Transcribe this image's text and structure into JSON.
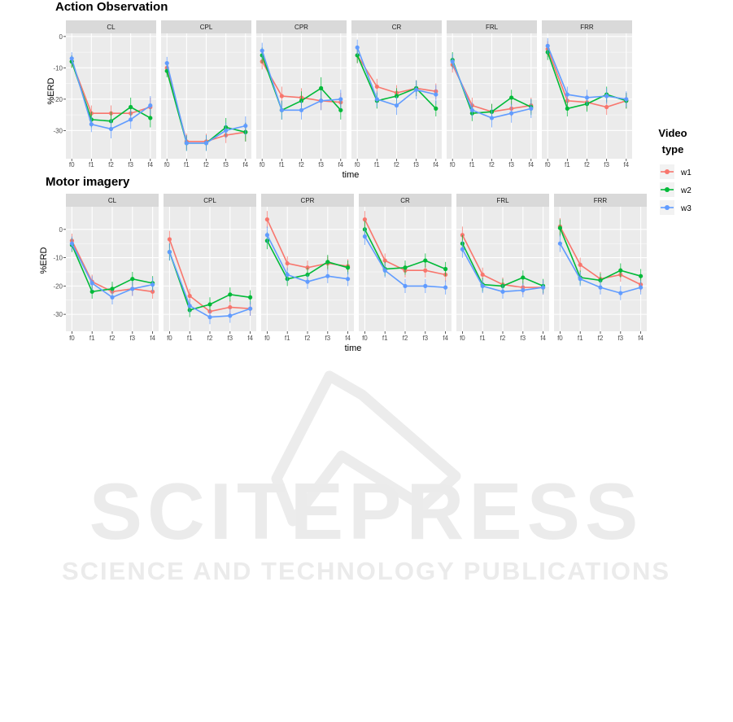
{
  "chart_data": [
    {
      "type": "line",
      "title": "Action Observation",
      "ylabel": "%ERD",
      "xlabel": "time",
      "ylim": [
        -39,
        1
      ],
      "yticks": [
        0,
        -10,
        -20,
        -30
      ],
      "x": [
        "f0",
        "f1",
        "f2",
        "f3",
        "f4"
      ],
      "facets": [
        {
          "name": "CL",
          "series": [
            {
              "name": "w1",
              "values": [
                -8,
                -24.5,
                -24.5,
                -24.5,
                -22.5
              ],
              "err": [
                2,
                2.5,
                2.5,
                2.5,
                3
              ]
            },
            {
              "name": "w2",
              "values": [
                -8,
                -26.5,
                -27,
                -22.5,
                -26
              ],
              "err": [
                2,
                2.5,
                3,
                3,
                3
              ]
            },
            {
              "name": "w3",
              "values": [
                -7,
                -28,
                -29.5,
                -26.5,
                -22
              ],
              "err": [
                2,
                2.5,
                3,
                3,
                3
              ]
            }
          ]
        },
        {
          "name": "CPL",
          "series": [
            {
              "name": "w1",
              "values": [
                -10,
                -33.5,
                -33.5,
                -31.5,
                -30.5
              ],
              "err": [
                2,
                2.5,
                2.5,
                2.5,
                3
              ]
            },
            {
              "name": "w2",
              "values": [
                -11,
                -34,
                -34,
                -29,
                -30.5
              ],
              "err": [
                2,
                2.5,
                2.5,
                3,
                3
              ]
            },
            {
              "name": "w3",
              "values": [
                -8.5,
                -34,
                -34,
                -30,
                -28.5
              ],
              "err": [
                2,
                2.5,
                2.5,
                2.5,
                3
              ]
            }
          ]
        },
        {
          "name": "CPR",
          "series": [
            {
              "name": "w1",
              "values": [
                -8,
                -19,
                -19.5,
                -20.5,
                -21
              ],
              "err": [
                2.5,
                3,
                3,
                3,
                3
              ]
            },
            {
              "name": "w2",
              "values": [
                -6,
                -23.5,
                -20.5,
                -16.5,
                -23.5
              ],
              "err": [
                2.5,
                3,
                3,
                3.5,
                3
              ]
            },
            {
              "name": "w3",
              "values": [
                -4.5,
                -23.5,
                -23.5,
                -20.5,
                -20
              ],
              "err": [
                2.5,
                3,
                3,
                3,
                3
              ]
            }
          ]
        },
        {
          "name": "CR",
          "series": [
            {
              "name": "w1",
              "values": [
                -6,
                -16,
                -18,
                -16.5,
                -17.5
              ],
              "err": [
                2.5,
                2.5,
                2.5,
                2.5,
                2.5
              ]
            },
            {
              "name": "w2",
              "values": [
                -6,
                -20.5,
                -19,
                -16.5,
                -23
              ],
              "err": [
                2.5,
                2.5,
                2.5,
                2.5,
                2.5
              ]
            },
            {
              "name": "w3",
              "values": [
                -3.5,
                -20,
                -22,
                -17,
                -18.5
              ],
              "err": [
                2.5,
                2.5,
                3,
                3,
                3
              ]
            }
          ]
        },
        {
          "name": "FRL",
          "series": [
            {
              "name": "w1",
              "values": [
                -9,
                -22,
                -24,
                -23,
                -22
              ],
              "err": [
                2.5,
                2.5,
                2.5,
                2.5,
                2.5
              ]
            },
            {
              "name": "w2",
              "values": [
                -7.5,
                -24.5,
                -24,
                -19.5,
                -22.5
              ],
              "err": [
                2.5,
                2.5,
                2.5,
                2.5,
                2.5
              ]
            },
            {
              "name": "w3",
              "values": [
                -8,
                -23.5,
                -26,
                -24.5,
                -23
              ],
              "err": [
                2.5,
                2.5,
                3,
                3,
                3
              ]
            }
          ]
        },
        {
          "name": "FRR",
          "series": [
            {
              "name": "w1",
              "values": [
                -4,
                -20.5,
                -21,
                -22.5,
                -20.5
              ],
              "err": [
                2.5,
                2.5,
                2.5,
                2.5,
                2.5
              ]
            },
            {
              "name": "w2",
              "values": [
                -5,
                -23,
                -21.5,
                -18.5,
                -20.5
              ],
              "err": [
                2.5,
                2.5,
                2.5,
                2.5,
                2.5
              ]
            },
            {
              "name": "w3",
              "values": [
                -3,
                -18.5,
                -19.5,
                -19,
                -20
              ],
              "err": [
                2.5,
                2.5,
                2.5,
                2.5,
                2.5
              ]
            }
          ]
        }
      ]
    },
    {
      "type": "line",
      "title": "Motor imagery",
      "ylabel": "%ERD",
      "xlabel": "time",
      "ylim": [
        -36,
        8
      ],
      "yticks": [
        0,
        -10,
        -20,
        -30
      ],
      "x": [
        "f0",
        "f1",
        "f2",
        "f3",
        "f4"
      ],
      "facets": [
        {
          "name": "CL",
          "series": [
            {
              "name": "w1",
              "values": [
                -4,
                -18.5,
                -22,
                -21,
                -22
              ],
              "err": [
                2.5,
                2.5,
                2.5,
                2.5,
                2.5
              ]
            },
            {
              "name": "w2",
              "values": [
                -5.5,
                -22,
                -21,
                -17.5,
                -19
              ],
              "err": [
                2.5,
                2.5,
                2.5,
                2.5,
                2.5
              ]
            },
            {
              "name": "w3",
              "values": [
                -5,
                -19,
                -24,
                -21,
                -19.5
              ],
              "err": [
                2.5,
                2.5,
                2.5,
                2.5,
                2.5
              ]
            }
          ]
        },
        {
          "name": "CPL",
          "series": [
            {
              "name": "w1",
              "values": [
                -3.5,
                -23.5,
                -29,
                -27.5,
                -28
              ],
              "err": [
                3,
                2.5,
                2.5,
                2.5,
                2.5
              ]
            },
            {
              "name": "w2",
              "values": [
                -8,
                -28.5,
                -26.5,
                -23,
                -24
              ],
              "err": [
                3,
                2.5,
                2.5,
                2.5,
                2.5
              ]
            },
            {
              "name": "w3",
              "values": [
                -8,
                -27,
                -31,
                -30.5,
                -28
              ],
              "err": [
                3,
                2.5,
                2.5,
                2.5,
                2.5
              ]
            }
          ]
        },
        {
          "name": "CPR",
          "series": [
            {
              "name": "w1",
              "values": [
                3.5,
                -12,
                -13.5,
                -12,
                -13
              ],
              "err": [
                3,
                2.5,
                2.5,
                2.5,
                2.5
              ]
            },
            {
              "name": "w2",
              "values": [
                -4,
                -17.5,
                -16,
                -11.5,
                -13.5
              ],
              "err": [
                3,
                2.5,
                2.5,
                2.5,
                2.5
              ]
            },
            {
              "name": "w3",
              "values": [
                -2,
                -16,
                -18.5,
                -16.5,
                -17.5
              ],
              "err": [
                3,
                2.5,
                2.5,
                2.5,
                2.5
              ]
            }
          ]
        },
        {
          "name": "CR",
          "series": [
            {
              "name": "w1",
              "values": [
                3.5,
                -11,
                -14.5,
                -14.5,
                -16
              ],
              "err": [
                3,
                2.5,
                2.5,
                2.5,
                2.5
              ]
            },
            {
              "name": "w2",
              "values": [
                0,
                -14,
                -13.5,
                -11,
                -14
              ],
              "err": [
                3,
                2.5,
                2.5,
                2.5,
                2.5
              ]
            },
            {
              "name": "w3",
              "values": [
                -2.5,
                -14.5,
                -20,
                -20,
                -20.5
              ],
              "err": [
                3,
                2.5,
                2.5,
                2.5,
                2.5
              ]
            }
          ]
        },
        {
          "name": "FRL",
          "series": [
            {
              "name": "w1",
              "values": [
                -2,
                -16,
                -19.5,
                -20.5,
                -20.5
              ],
              "err": [
                3,
                2.5,
                2.5,
                2.5,
                2.5
              ]
            },
            {
              "name": "w2",
              "values": [
                -5,
                -19.5,
                -20,
                -17,
                -20
              ],
              "err": [
                3,
                2.5,
                2.5,
                2.5,
                2.5
              ]
            },
            {
              "name": "w3",
              "values": [
                -7,
                -20,
                -22,
                -21.5,
                -20.5
              ],
              "err": [
                3,
                2.5,
                2.5,
                2.5,
                2.5
              ]
            }
          ]
        },
        {
          "name": "FRR",
          "series": [
            {
              "name": "w1",
              "values": [
                1,
                -12.5,
                -17.5,
                -16,
                -19.5
              ],
              "err": [
                3,
                2.5,
                2.5,
                2.5,
                2.5
              ]
            },
            {
              "name": "w2",
              "values": [
                0.5,
                -17,
                -18,
                -14.5,
                -16.5
              ],
              "err": [
                3,
                2.5,
                2.5,
                2.5,
                2.5
              ]
            },
            {
              "name": "w3",
              "values": [
                -5,
                -17.5,
                -20.5,
                -22.5,
                -20.5
              ],
              "err": [
                3,
                2.5,
                2.5,
                2.5,
                2.5
              ]
            }
          ]
        }
      ]
    }
  ],
  "legend": {
    "title_line1": "Video",
    "title_line2": "type",
    "placement": "right",
    "items": [
      {
        "name": "w1",
        "color": "#F8766D"
      },
      {
        "name": "w2",
        "color": "#00BA38"
      },
      {
        "name": "w3",
        "color": "#619CFF"
      }
    ]
  },
  "colors": {
    "w1": "#F8766D",
    "w2": "#00BA38",
    "w3": "#619CFF",
    "panel_bg": "#EBEBEB",
    "strip_bg": "#D9D9D9",
    "grid": "#FFFFFF"
  },
  "watermark": {
    "main": "SCITEPRESS",
    "sub": "SCIENCE AND TECHNOLOGY PUBLICATIONS"
  }
}
